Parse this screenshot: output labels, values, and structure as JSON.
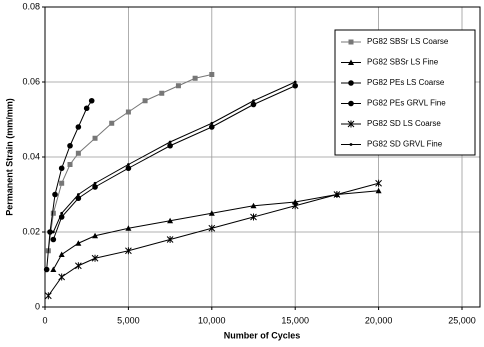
{
  "chart_data": {
    "type": "line",
    "x_label": "Number of Cycles",
    "y_label": "Permanent Strain (mm/mm)",
    "xlim": [
      0,
      25000
    ],
    "xticks": [
      0,
      {
        "value": 5000,
        "label": "5,000"
      },
      {
        "value": 10000,
        "label": "10,000"
      },
      {
        "value": 15000,
        "label": "15,000"
      },
      {
        "value": 20000,
        "label": "20,000"
      },
      {
        "value": 25000,
        "label": "25,000"
      }
    ],
    "ylim": [
      0,
      0.08
    ],
    "yticks": [
      0,
      0.02,
      0.04,
      0.06,
      0.08
    ],
    "grid": true,
    "legend": "upper right",
    "series": [
      {
        "name": "PG82 SBSr LS Coarse",
        "color": "#777777",
        "marker": "square",
        "x": [
          200,
          500,
          1000,
          1500,
          2000,
          3000,
          4000,
          5000,
          6000,
          7000,
          8000,
          9000,
          10000
        ],
        "values": [
          0.015,
          0.025,
          0.033,
          0.038,
          0.041,
          0.045,
          0.049,
          0.052,
          0.055,
          0.057,
          0.059,
          0.061,
          0.062
        ]
      },
      {
        "name": "PG82 SBSr LS Fine",
        "color": "#000000",
        "marker": "triangle",
        "x": [
          500,
          1000,
          2000,
          3000,
          5000,
          7500,
          10000,
          12500,
          15000,
          17500,
          20000
        ],
        "values": [
          0.01,
          0.014,
          0.017,
          0.019,
          0.021,
          0.023,
          0.025,
          0.027,
          0.028,
          0.03,
          0.031
        ]
      },
      {
        "name": "PG82 PEs LS Coarse",
        "color": "#000000",
        "marker": "circle",
        "x": [
          500,
          1000,
          2000,
          3000,
          5000,
          7500,
          10000,
          12500,
          15000
        ],
        "values": [
          0.018,
          0.024,
          0.029,
          0.032,
          0.037,
          0.043,
          0.048,
          0.054,
          0.059
        ]
      },
      {
        "name": "PG82 PEs GRVL Fine",
        "color": "#000000",
        "marker": "circle",
        "x": [
          100,
          300,
          600,
          1000,
          1500,
          2000,
          2500,
          2800
        ],
        "values": [
          0.01,
          0.02,
          0.03,
          0.037,
          0.043,
          0.048,
          0.053,
          0.055
        ]
      },
      {
        "name": "PG82 SD LS Coarse",
        "color": "#000000",
        "marker": "x",
        "x": [
          200,
          1000,
          2000,
          3000,
          5000,
          7500,
          10000,
          12500,
          15000,
          17500,
          20000
        ],
        "values": [
          0.003,
          0.008,
          0.011,
          0.013,
          0.015,
          0.018,
          0.021,
          0.024,
          0.027,
          0.03,
          0.033
        ]
      },
      {
        "name": "PG82 SD GRVL Fine",
        "color": "#000000",
        "marker": "dot",
        "x": [
          500,
          1000,
          2000,
          3000,
          5000,
          7500,
          10000,
          12500,
          15000
        ],
        "values": [
          0.02,
          0.025,
          0.03,
          0.033,
          0.038,
          0.044,
          0.049,
          0.055,
          0.06
        ]
      }
    ]
  }
}
